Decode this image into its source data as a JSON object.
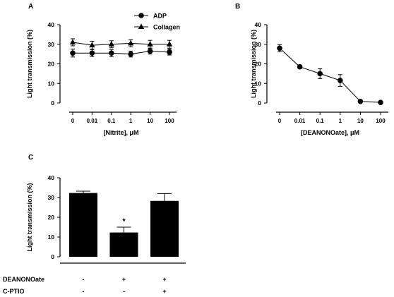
{
  "chart_data": [
    {
      "panel": "A",
      "type": "line",
      "xlabel": "[Nitrite], μM",
      "ylabel": "Light transmission (%)",
      "categories": [
        "0",
        "0.01",
        "0.1",
        "1",
        "10",
        "100"
      ],
      "ylim": [
        0,
        40
      ],
      "yticks": [
        "0",
        "10",
        "20",
        "30",
        "40"
      ],
      "legend_position": "top-right",
      "series": [
        {
          "name": "ADP",
          "marker": "circle",
          "values": [
            25.5,
            25.5,
            25.5,
            25,
            26.5,
            26
          ],
          "errors": [
            2,
            1.8,
            1.8,
            1.5,
            1.5,
            1.5
          ]
        },
        {
          "name": "Collagen",
          "marker": "triangle",
          "values": [
            31,
            29.5,
            30,
            30.5,
            30,
            30
          ],
          "errors": [
            1.8,
            2,
            1.8,
            1.8,
            2,
            2
          ]
        }
      ]
    },
    {
      "panel": "B",
      "type": "line",
      "xlabel": "[DEANONOate], μM",
      "ylabel": "Light transmission (%)",
      "categories": [
        "0",
        "0.01",
        "0.1",
        "1",
        "10",
        "100"
      ],
      "ylim": [
        0,
        40
      ],
      "yticks": [
        "0",
        "10",
        "20",
        "30",
        "40"
      ],
      "series": [
        {
          "marker": "circle",
          "values": [
            28,
            18.5,
            15,
            11.5,
            0.8,
            0.3
          ],
          "errors": [
            1.8,
            0.8,
            2.5,
            3,
            0.5,
            0.3
          ]
        }
      ]
    },
    {
      "panel": "C",
      "type": "bar",
      "ylabel": "Light transmission (%)",
      "ylim": [
        0,
        40
      ],
      "yticks": [
        "0",
        "10",
        "20",
        "30",
        "40"
      ],
      "values": [
        32.3,
        12.3,
        28.3
      ],
      "errors": [
        0.9,
        2.7,
        3.7
      ],
      "annotations": [
        "",
        "*",
        ""
      ],
      "conditions": [
        {
          "label": "DEANONOate",
          "signs": [
            "-",
            "+",
            "+"
          ]
        },
        {
          "label": "C-PTIO",
          "signs": [
            "-",
            "-",
            "+"
          ]
        }
      ]
    }
  ]
}
